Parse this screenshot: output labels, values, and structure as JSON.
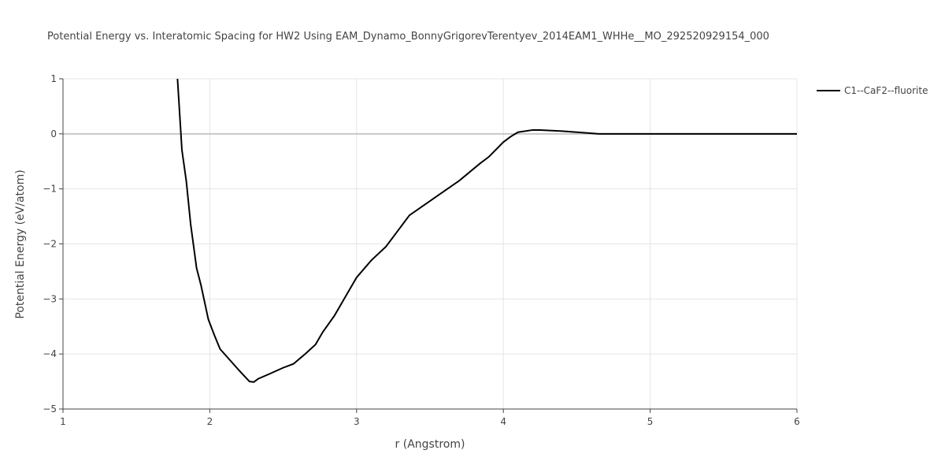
{
  "chart_data": {
    "type": "line",
    "title": "Potential Energy vs. Interatomic Spacing for HW2 Using EAM_Dynamo_BonnyGrigorevTerentyev_2014EAM1_WHHe__MO_292520929154_000",
    "x_label": "r (Angstrom)",
    "y_label": "Potential Energy (eV/atom)",
    "xlim": [
      1,
      6
    ],
    "ylim": [
      -5,
      1
    ],
    "xticks": [
      1,
      2,
      3,
      4,
      5,
      6
    ],
    "yticks": [
      {
        "value": -5,
        "label": "−5"
      },
      {
        "value": -4,
        "label": "−4"
      },
      {
        "value": -3,
        "label": "−3"
      },
      {
        "value": -2,
        "label": "−2"
      },
      {
        "value": -1,
        "label": "−1"
      },
      0,
      1
    ],
    "grid": true,
    "legend": "right",
    "x": [
      1.78,
      1.81,
      1.84,
      1.87,
      1.91,
      1.94,
      1.99,
      2.03,
      2.07,
      2.15,
      2.2,
      2.27,
      2.3,
      2.33,
      2.4,
      2.5,
      2.57,
      2.65,
      2.72,
      2.77,
      2.85,
      3.0,
      3.1,
      3.2,
      3.36,
      3.5,
      3.7,
      3.84,
      3.9,
      4.0,
      4.05,
      4.1,
      4.2,
      4.25,
      4.4,
      4.6,
      4.65,
      5.0,
      5.5,
      6.0
    ],
    "series": [
      {
        "name": "C1--CaF2--fluorite",
        "color": "#000000",
        "values": [
          1.0,
          -0.29,
          -0.86,
          -1.65,
          -2.44,
          -2.75,
          -3.37,
          -3.65,
          -3.91,
          -4.15,
          -4.3,
          -4.5,
          -4.51,
          -4.45,
          -4.37,
          -4.25,
          -4.18,
          -4.0,
          -3.83,
          -3.6,
          -3.3,
          -2.61,
          -2.3,
          -2.05,
          -1.48,
          -1.22,
          -0.85,
          -0.54,
          -0.42,
          -0.15,
          -0.05,
          0.03,
          0.07,
          0.07,
          0.05,
          0.01,
          0,
          0,
          0,
          0
        ]
      }
    ]
  }
}
